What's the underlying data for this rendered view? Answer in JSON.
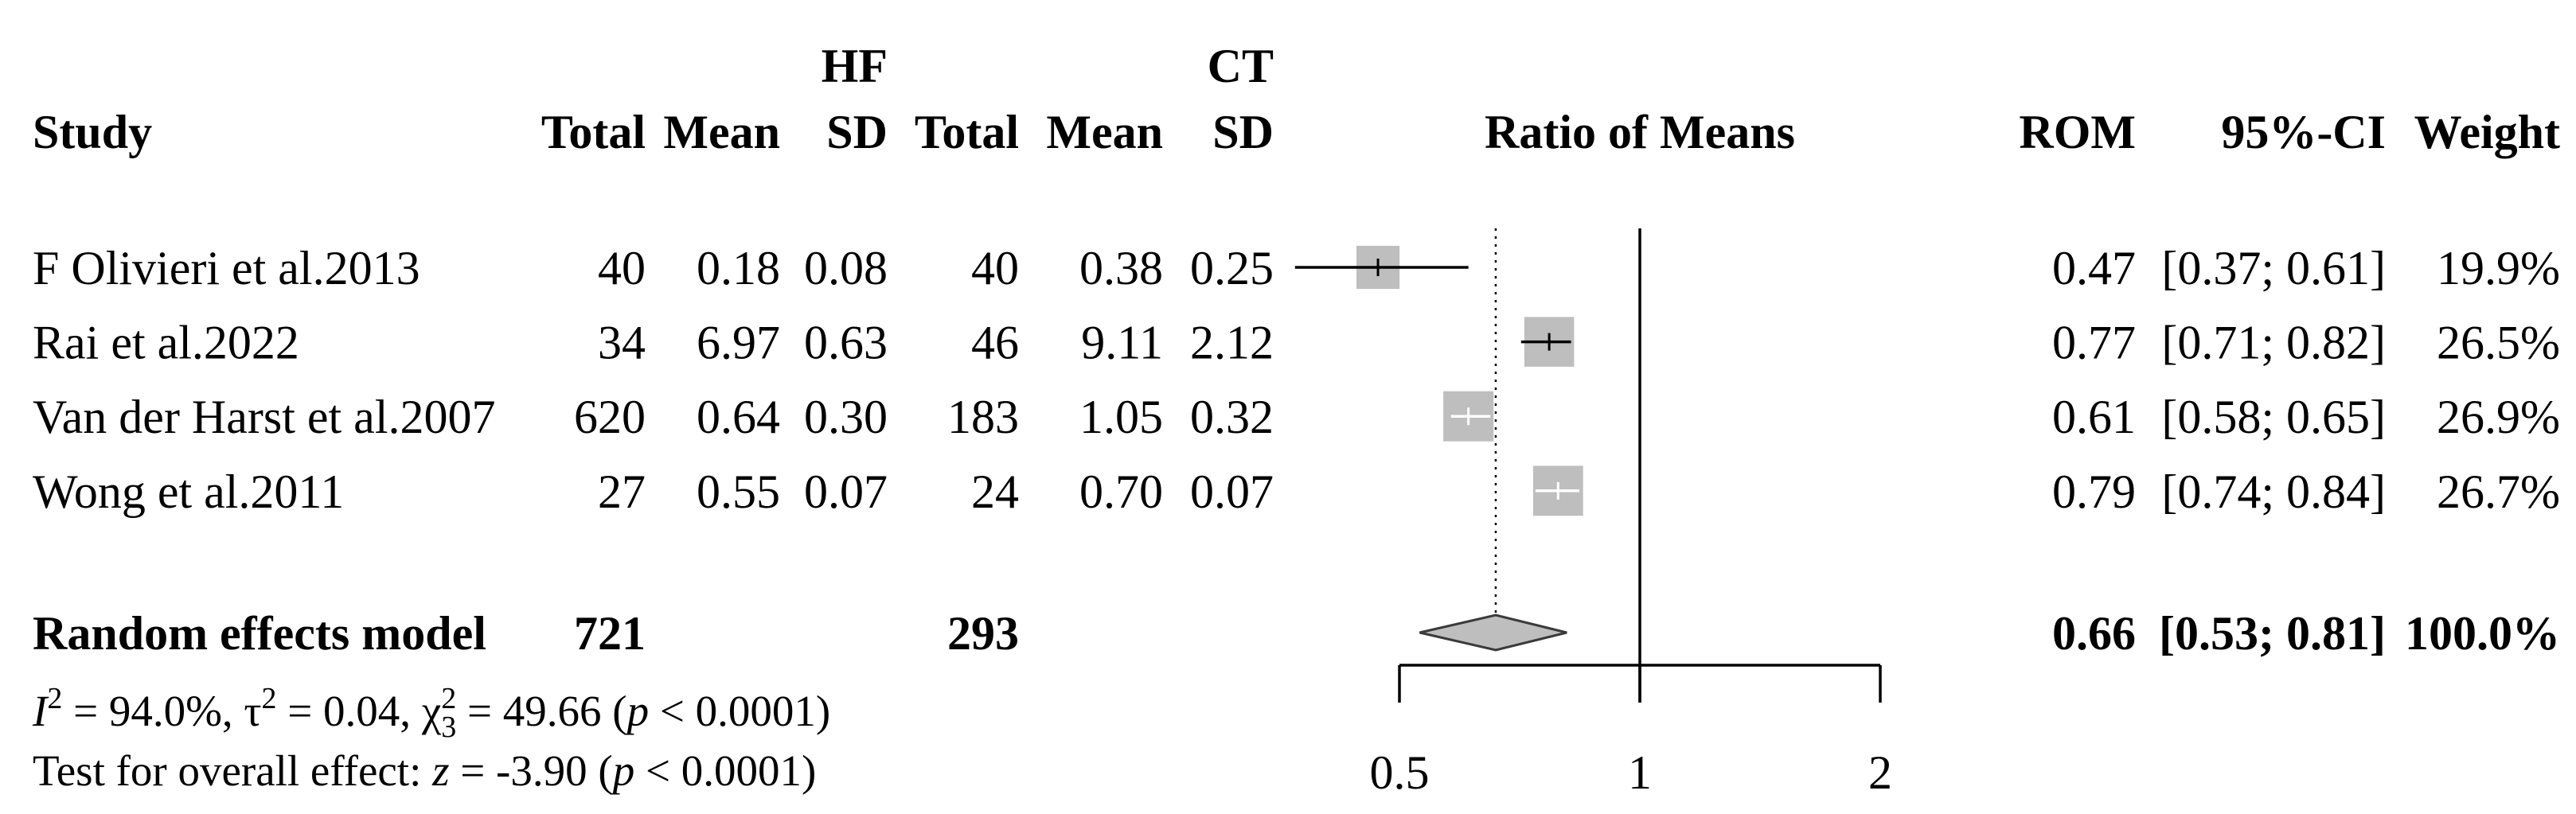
{
  "chart_data": {
    "type": "scatter",
    "xlabel": "Ratio of Means",
    "x_ticks": [
      "0.5",
      "1",
      "2"
    ],
    "null_value": 1,
    "header": {
      "study": "Study",
      "groups": [
        "HF",
        "CT"
      ],
      "total": "Total",
      "mean": "Mean",
      "sd": "SD",
      "rom": "ROM",
      "ci": "95%-CI",
      "weight": "Weight"
    },
    "studies": [
      {
        "name": "F Olivieri et al.2013",
        "hf_total": "40",
        "hf_mean": "0.18",
        "hf_sd": "0.08",
        "ct_total": "40",
        "ct_mean": "0.38",
        "ct_sd": "0.25",
        "rom": "0.47",
        "ci": "[0.37; 0.61]",
        "weight": "19.9%"
      },
      {
        "name": "Rai et al.2022",
        "hf_total": "34",
        "hf_mean": "6.97",
        "hf_sd": "0.63",
        "ct_total": "46",
        "ct_mean": "9.11",
        "ct_sd": "2.12",
        "rom": "0.77",
        "ci": "[0.71; 0.82]",
        "weight": "26.5%"
      },
      {
        "name": "Van der Harst et al.2007",
        "hf_total": "620",
        "hf_mean": "0.64",
        "hf_sd": "0.30",
        "ct_total": "183",
        "ct_mean": "1.05",
        "ct_sd": "0.32",
        "rom": "0.61",
        "ci": "[0.58; 0.65]",
        "weight": "26.9%"
      },
      {
        "name": "Wong et al.2011",
        "hf_total": "27",
        "hf_mean": "0.55",
        "hf_sd": "0.07",
        "ct_total": "24",
        "ct_mean": "0.70",
        "ct_sd": "0.07",
        "rom": "0.79",
        "ci": "[0.74; 0.84]",
        "weight": "26.7%"
      }
    ],
    "pooled": {
      "label": "Random effects model",
      "hf_total": "721",
      "ct_total": "293",
      "rom": "0.66",
      "ci": "[0.53; 0.81]",
      "weight": "100.0%"
    },
    "heterogeneity": {
      "i2_symbol": "I",
      "i2_sup": "2",
      "i2_text": " = 94.0%, ",
      "tau_symbol": "τ",
      "tau_sup": "2",
      "tau_text": " = 0.04, ",
      "chi_symbol": "χ",
      "chi_sup": "2",
      "chi_sub": "3",
      "chi_text": " = 49.66 (",
      "p_symbol": "p",
      "p_text": " < 0.0001)"
    },
    "overall_test": {
      "label": "Test for overall effect: ",
      "z_symbol": "z",
      "z_text": " = -3.90 (",
      "p_symbol": "p",
      "p_text": " < 0.0001)"
    }
  },
  "colors": {
    "square": "#bebebe",
    "diamond_fill": "#bebebe",
    "diamond_stroke": "#3a3a3a",
    "line": "#000000",
    "line_inside": "#ffffff"
  }
}
